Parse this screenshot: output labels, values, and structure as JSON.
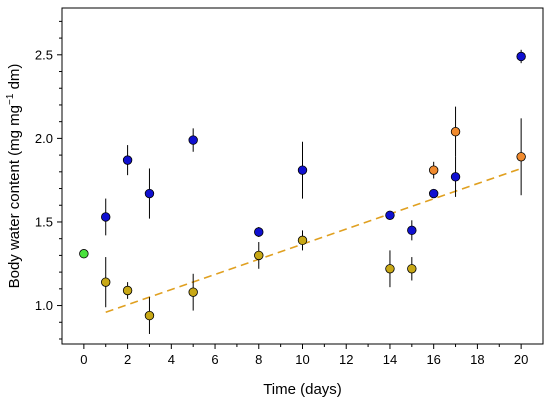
{
  "chart_data": {
    "type": "scatter",
    "xlabel": "Time (days)",
    "ylabel": {
      "main": "Body water content (mg mg",
      "sup": "−1",
      "tail": " dm)"
    },
    "xlim": [
      -1,
      21
    ],
    "ylim": [
      0.77,
      2.78
    ],
    "xticks": [
      0,
      2,
      4,
      6,
      8,
      10,
      12,
      14,
      16,
      18,
      20
    ],
    "yticks": [
      1.0,
      1.5,
      2.0,
      2.5
    ],
    "grid": false,
    "colors": {
      "blue": "#1010d0",
      "olive": "#c8a816",
      "orange": "#f08a2e",
      "green": "#49e23c",
      "trend": "#e0a020"
    },
    "series": [
      {
        "color": "green",
        "points": [
          {
            "x": 0,
            "y": 1.31,
            "err": 0
          }
        ]
      },
      {
        "color": "blue",
        "points": [
          {
            "x": 1,
            "y": 1.53,
            "err": 0.11
          },
          {
            "x": 2,
            "y": 1.87,
            "err": 0.09
          },
          {
            "x": 3,
            "y": 1.67,
            "err": 0.15
          },
          {
            "x": 5,
            "y": 1.99,
            "err": 0.07
          },
          {
            "x": 8,
            "y": 1.44,
            "err": 0.03
          },
          {
            "x": 10,
            "y": 1.81,
            "err": 0.17
          },
          {
            "x": 14,
            "y": 1.54,
            "err": 0.01
          },
          {
            "x": 15,
            "y": 1.45,
            "err": 0.06
          },
          {
            "x": 16,
            "y": 1.67,
            "err": 0.01
          },
          {
            "x": 17,
            "y": 1.77,
            "err": 0.12
          },
          {
            "x": 20,
            "y": 2.49,
            "err": 0.04
          }
        ]
      },
      {
        "color": "olive",
        "points": [
          {
            "x": 1,
            "y": 1.14,
            "err": 0.15
          },
          {
            "x": 2,
            "y": 1.09,
            "err": 0.05
          },
          {
            "x": 3,
            "y": 0.94,
            "err": 0.11
          },
          {
            "x": 5,
            "y": 1.08,
            "err": 0.11
          },
          {
            "x": 8,
            "y": 1.3,
            "err": 0.08
          },
          {
            "x": 10,
            "y": 1.39,
            "err": 0.06
          },
          {
            "x": 14,
            "y": 1.22,
            "err": 0.11
          },
          {
            "x": 15,
            "y": 1.22,
            "err": 0.07
          }
        ]
      },
      {
        "color": "orange",
        "points": [
          {
            "x": 16,
            "y": 1.81,
            "err": 0.05
          },
          {
            "x": 17,
            "y": 2.04,
            "err": 0.15
          },
          {
            "x": 20,
            "y": 1.89,
            "err": 0.23
          }
        ]
      }
    ],
    "trendline": {
      "style": "dashed",
      "from": [
        1,
        0.96
      ],
      "to": [
        20,
        1.82
      ]
    }
  }
}
